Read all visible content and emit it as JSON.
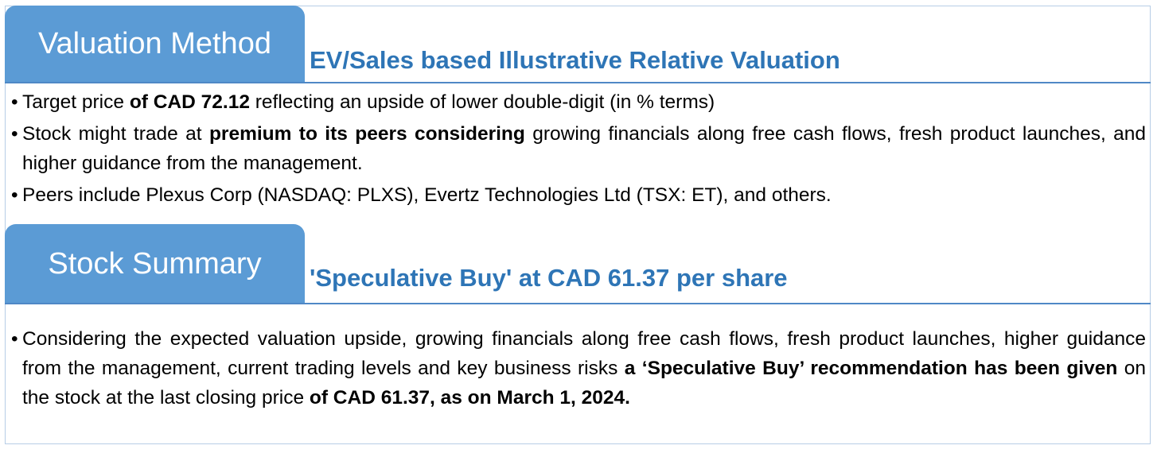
{
  "valuation": {
    "tab_label": "Valuation Method",
    "subtitle": "EV/Sales based Illustrative Relative Valuation",
    "bullets": [
      {
        "pre": "Target price ",
        "bold": "of CAD 72.12",
        "post": " reflecting an upside of lower double-digit (in % terms)"
      },
      {
        "pre": "Stock might trade at ",
        "bold": "premium to its peers considering",
        "post": " growing financials along free cash flows, fresh product launches, and higher guidance from the management."
      },
      {
        "text": "Peers include Plexus Corp (NASDAQ: PLXS), Evertz Technologies Ltd (TSX: ET), and others."
      }
    ]
  },
  "summary": {
    "tab_label": "Stock Summary",
    "subtitle": "'Speculative Buy' at CAD 61.37 per share",
    "bullet": {
      "pre": "Considering the expected valuation upside, growing financials along free cash flows, fresh product launches, higher guidance from the management, current trading levels and key business risks ",
      "bold1": "a ‘Speculative Buy’ recommendation has been given",
      "mid": " on the stock at the last closing price ",
      "bold2": "of CAD 61.37, as on March 1, 2024."
    }
  },
  "colors": {
    "tab_bg": "#5b9bd5",
    "subtitle": "#2e75b6",
    "rule": "#4f88c6",
    "frame": "#b7cde6"
  }
}
